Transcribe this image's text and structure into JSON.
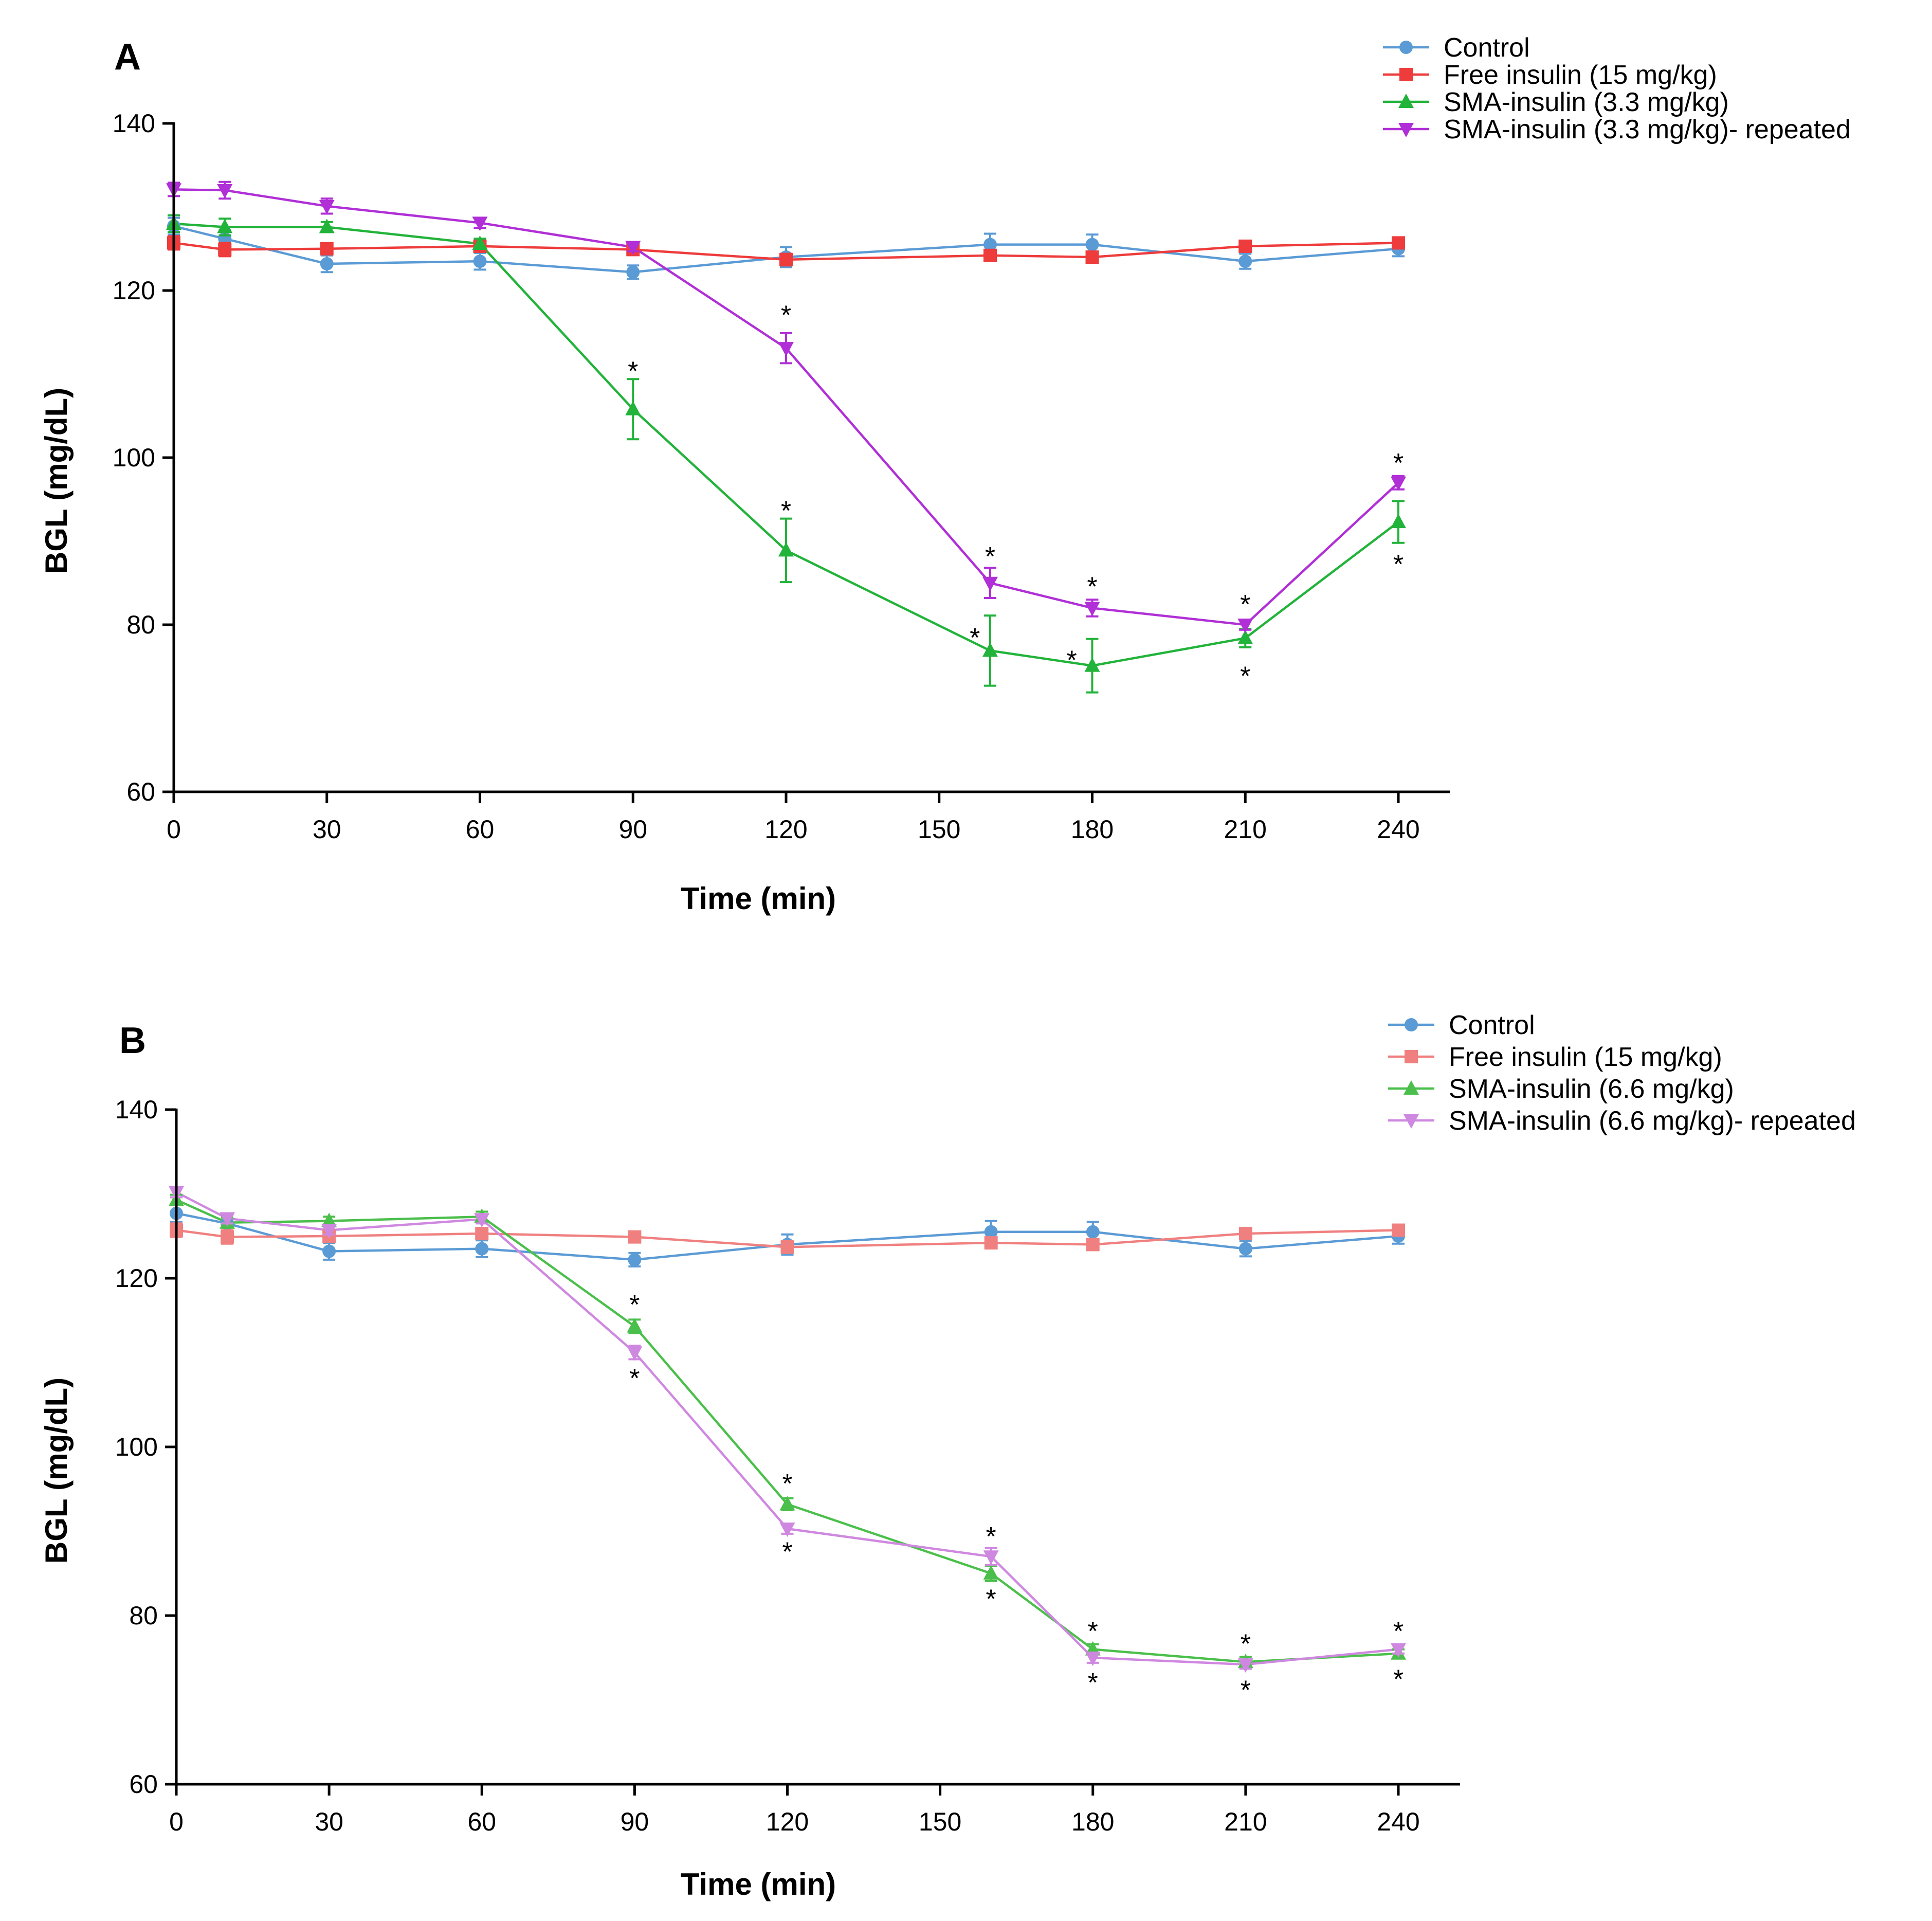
{
  "colors": {
    "control": "#5b9bd5",
    "free_insulin": "#ee3b3b",
    "sma": "#22b33a",
    "sma_repeated": "#b02fd6",
    "free_insulin_light": "#f08080",
    "sma_light": "#4bbf4b",
    "sma_repeated_light": "#cf88e0",
    "axis": "#000000"
  },
  "chart_data": [
    {
      "panel_label": "A",
      "type": "line",
      "xlabel": "Time (min)",
      "ylabel": "BGL (mg/dL)",
      "xlim": [
        0,
        240
      ],
      "ylim": [
        60,
        140
      ],
      "xticks": [
        0,
        30,
        60,
        90,
        120,
        150,
        180,
        210,
        240
      ],
      "yticks": [
        60,
        80,
        100,
        120,
        140
      ],
      "legend_position": "top-right",
      "series": [
        {
          "name": "Control",
          "color_key": "control",
          "marker": "circle",
          "x": [
            0,
            10,
            30,
            60,
            90,
            120,
            160,
            180,
            210,
            240
          ],
          "y": [
            127.7,
            126.2,
            123.2,
            123.5,
            122.2,
            124.0,
            125.5,
            125.5,
            123.5,
            125.0
          ],
          "err": [
            1.0,
            1.0,
            1.0,
            1.0,
            0.8,
            1.2,
            1.3,
            1.2,
            0.9,
            0.9
          ]
        },
        {
          "name": "Free insulin (15 mg/kg)",
          "color_key": "free_insulin",
          "marker": "square",
          "x": [
            0,
            10,
            30,
            60,
            90,
            120,
            160,
            180,
            210,
            240
          ],
          "y": [
            125.7,
            124.9,
            125.0,
            125.3,
            124.9,
            123.7,
            124.2,
            124.0,
            125.3,
            125.7
          ],
          "err": [
            0.8,
            0.8,
            0.6,
            0.6,
            0.5,
            0.7,
            0.6,
            0.5,
            0.5,
            0.4
          ]
        },
        {
          "name": "SMA-insulin (3.3 mg/kg)",
          "color_key": "sma",
          "marker": "triangle-up",
          "x": [
            0,
            10,
            30,
            60,
            90,
            120,
            160,
            180,
            210,
            240
          ],
          "y": [
            128.0,
            127.6,
            127.6,
            125.6,
            105.8,
            88.9,
            76.9,
            75.1,
            78.4,
            92.3
          ],
          "err": [
            1.0,
            1.0,
            0.6,
            0.6,
            3.6,
            3.8,
            4.2,
            3.2,
            1.1,
            2.5
          ]
        },
        {
          "name": "SMA-insulin (3.3 mg/kg)- repeated",
          "color_key": "sma_repeated",
          "marker": "triangle-down",
          "x": [
            0,
            10,
            30,
            60,
            90,
            120,
            160,
            180,
            210,
            240
          ],
          "y": [
            132.1,
            132.0,
            130.1,
            128.1,
            125.2,
            113.1,
            85.0,
            82.0,
            80.0,
            97.0
          ],
          "err": [
            0.8,
            1.0,
            0.9,
            0.6,
            0.5,
            1.8,
            1.8,
            1.0,
            0.6,
            0.8
          ]
        }
      ],
      "significance": [
        {
          "label": "*",
          "x": 90,
          "y": 110.5
        },
        {
          "label": "*",
          "x": 120,
          "y": 93.8
        },
        {
          "label": "*",
          "x": 120,
          "y": 117.2
        },
        {
          "label": "*",
          "x": 160,
          "y": 88.3
        },
        {
          "label": "*",
          "x": 157,
          "y": 78.6
        },
        {
          "label": "*",
          "x": 180,
          "y": 84.7
        },
        {
          "label": "*",
          "x": 176,
          "y": 75.9
        },
        {
          "label": "*",
          "x": 210,
          "y": 82.6
        },
        {
          "label": "*",
          "x": 210,
          "y": 74.0
        },
        {
          "label": "*",
          "x": 240,
          "y": 99.5
        },
        {
          "label": "*",
          "x": 240,
          "y": 87.4
        }
      ]
    },
    {
      "panel_label": "B",
      "type": "line",
      "xlabel": "Time (min)",
      "ylabel": "BGL (mg/dL)",
      "xlim": [
        0,
        240
      ],
      "ylim": [
        60,
        140
      ],
      "xticks": [
        0,
        30,
        60,
        90,
        120,
        150,
        180,
        210,
        240
      ],
      "yticks": [
        60,
        80,
        100,
        120,
        140
      ],
      "legend_position": "top-right",
      "series": [
        {
          "name": "Control",
          "color_key": "control",
          "marker": "circle",
          "x": [
            0,
            10,
            30,
            60,
            90,
            120,
            160,
            180,
            210,
            240
          ],
          "y": [
            127.7,
            126.5,
            123.2,
            123.5,
            122.2,
            124.0,
            125.5,
            125.5,
            123.5,
            125.0
          ],
          "err": [
            1.0,
            1.0,
            1.0,
            1.0,
            0.8,
            1.2,
            1.3,
            1.2,
            0.9,
            0.9
          ]
        },
        {
          "name": "Free insulin (15 mg/kg)",
          "color_key": "free_insulin_light",
          "marker": "square",
          "x": [
            0,
            10,
            30,
            60,
            90,
            120,
            160,
            180,
            210,
            240
          ],
          "y": [
            125.7,
            124.9,
            125.0,
            125.3,
            124.9,
            123.7,
            124.2,
            124.0,
            125.3,
            125.7
          ],
          "err": [
            0.8,
            0.8,
            0.6,
            0.6,
            0.5,
            0.7,
            0.6,
            0.5,
            0.5,
            0.4
          ]
        },
        {
          "name": "SMA-insulin (6.6 mg/kg)",
          "color_key": "sma_light",
          "marker": "triangle-up",
          "x": [
            0,
            10,
            30,
            60,
            90,
            120,
            160,
            180,
            210,
            240
          ],
          "y": [
            129.3,
            126.6,
            126.8,
            127.3,
            114.3,
            93.2,
            85.0,
            76.0,
            74.5,
            75.5
          ],
          "err": [
            0.6,
            0.6,
            0.5,
            0.6,
            0.8,
            0.7,
            0.9,
            0.6,
            0.6,
            0.5
          ]
        },
        {
          "name": "SMA-insulin (6.6 mg/kg)- repeated",
          "color_key": "sma_repeated_light",
          "marker": "triangle-down",
          "x": [
            0,
            10,
            30,
            60,
            90,
            120,
            160,
            180,
            210,
            240
          ],
          "y": [
            130.2,
            127.1,
            125.7,
            127.0,
            111.2,
            90.3,
            87.0,
            75.0,
            74.2,
            76.0
          ],
          "err": [
            0.6,
            0.6,
            0.5,
            0.5,
            0.8,
            0.6,
            1.0,
            0.6,
            0.5,
            0.5
          ]
        }
      ],
      "significance": [
        {
          "label": "*",
          "x": 90,
          "y": 117.0
        },
        {
          "label": "*",
          "x": 90,
          "y": 108.3
        },
        {
          "label": "*",
          "x": 120,
          "y": 95.8
        },
        {
          "label": "*",
          "x": 120,
          "y": 87.7
        },
        {
          "label": "*",
          "x": 160,
          "y": 89.5
        },
        {
          "label": "*",
          "x": 160,
          "y": 82.1
        },
        {
          "label": "*",
          "x": 180,
          "y": 78.3
        },
        {
          "label": "*",
          "x": 180,
          "y": 72.2
        },
        {
          "label": "*",
          "x": 210,
          "y": 76.8
        },
        {
          "label": "*",
          "x": 210,
          "y": 71.3
        },
        {
          "label": "*",
          "x": 240,
          "y": 78.3
        },
        {
          "label": "*",
          "x": 240,
          "y": 72.6
        }
      ]
    }
  ]
}
